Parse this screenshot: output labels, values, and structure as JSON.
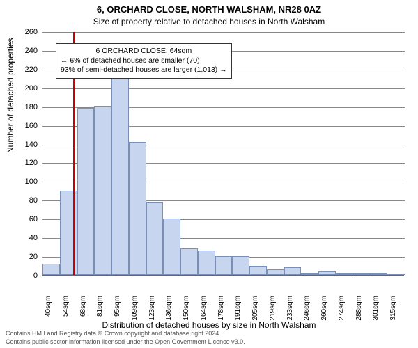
{
  "title_line1": "6, ORCHARD CLOSE, NORTH WALSHAM, NR28 0AZ",
  "title_line2": "Size of property relative to detached houses in North Walsham",
  "ylabel": "Number of detached properties",
  "xlabel": "Distribution of detached houses by size in North Walsham",
  "footer_line1": "Contains HM Land Registry data © Crown copyright and database right 2024.",
  "footer_line2": "Contains public sector information licensed under the Open Government Licence v3.0.",
  "annot": {
    "line1": "6 ORCHARD CLOSE: 64sqm",
    "line2": "← 6% of detached houses are smaller (70)",
    "line3": "93% of semi-detached houses are larger (1,013) →"
  },
  "chart": {
    "type": "histogram",
    "ylim": [
      0,
      260
    ],
    "ytick_step": 20,
    "bar_fill": "#c8d5ef",
    "bar_stroke": "#7a8fb8",
    "grid_color": "#888888",
    "axis_color": "#666666",
    "marker_color": "#cc0000",
    "marker_x": 64,
    "background": "#ffffff",
    "title_fontsize": 13,
    "subtitle_fontsize": 12,
    "label_fontsize": 12,
    "tick_fontsize": 11,
    "annot_fontsize": 10.5,
    "x_start": 40,
    "x_bin_width": 13.636,
    "x_ticks": [
      "40sqm",
      "54sqm",
      "68sqm",
      "81sqm",
      "95sqm",
      "109sqm",
      "123sqm",
      "136sqm",
      "150sqm",
      "164sqm",
      "178sqm",
      "191sqm",
      "205sqm",
      "219sqm",
      "233sqm",
      "246sqm",
      "260sqm",
      "274sqm",
      "288sqm",
      "301sqm",
      "315sqm"
    ],
    "y_ticks": [
      0,
      20,
      40,
      60,
      80,
      100,
      120,
      140,
      160,
      180,
      200,
      220,
      240,
      260
    ],
    "values": [
      12,
      90,
      178,
      180,
      212,
      142,
      78,
      60,
      28,
      26,
      20,
      20,
      10,
      6,
      8,
      2,
      4,
      2,
      2,
      2,
      0
    ]
  }
}
